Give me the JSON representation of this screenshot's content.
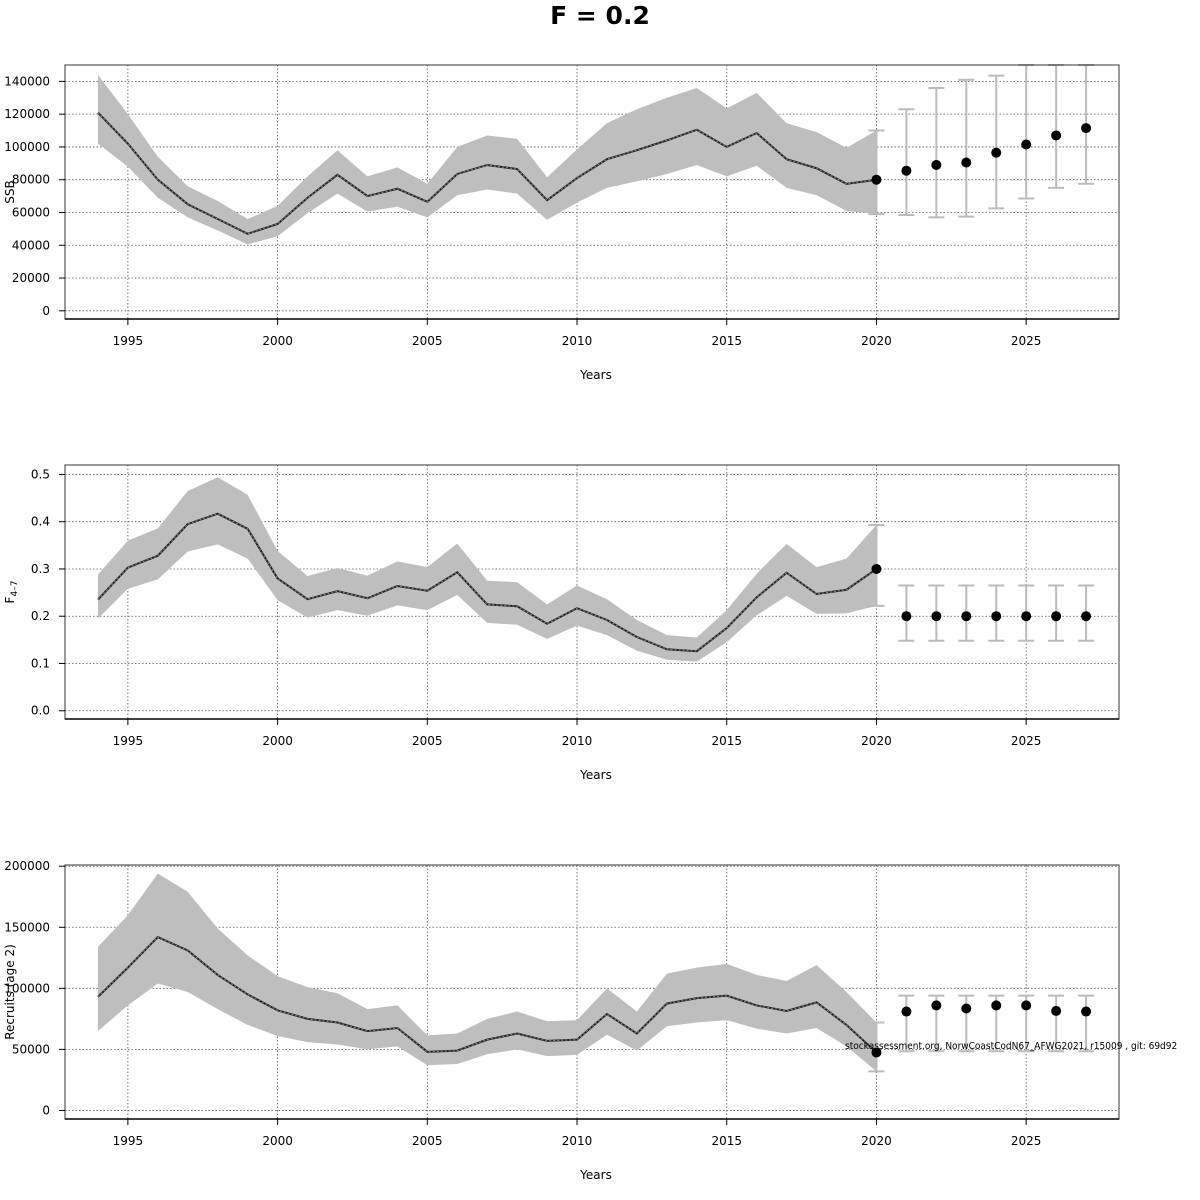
{
  "title": "F = 0.2",
  "footnote": "stockassessment.org, NorwCoastCodN67_AFWG2021, r15009 , git: 69d92",
  "colors": {
    "band": "#bebebe",
    "line": "#222222",
    "errorbar": "#bbbbbb",
    "point": "#000000",
    "grid": "#555555"
  },
  "chart_data": [
    {
      "type": "line",
      "ylabel": "SSB",
      "xlabel": "Years",
      "xlim": [
        1992.9,
        2028.1
      ],
      "ylim": [
        -5000,
        150000
      ],
      "xticks": [
        1995,
        2000,
        2005,
        2010,
        2015,
        2020,
        2025
      ],
      "yticks": [
        0,
        20000,
        40000,
        60000,
        80000,
        100000,
        120000,
        140000
      ],
      "grid": true,
      "history": {
        "years": [
          1994,
          1995,
          1996,
          1997,
          1998,
          1999,
          2000,
          2001,
          2002,
          2003,
          2004,
          2005,
          2006,
          2007,
          2008,
          2009,
          2010,
          2011,
          2012,
          2013,
          2014,
          2015,
          2016,
          2017,
          2018,
          2019,
          2020
        ],
        "estimate": [
          121000,
          102000,
          80000,
          65000,
          56000,
          47000,
          53000,
          69000,
          83000,
          70000,
          74500,
          66500,
          83500,
          89000,
          86500,
          67500,
          81000,
          92500,
          98000,
          104000,
          110500,
          100000,
          108500,
          92500,
          87000,
          77500,
          80000
        ],
        "lower": [
          102000,
          88000,
          69000,
          57000,
          49000,
          40500,
          45500,
          59500,
          71500,
          60500,
          63500,
          57000,
          70500,
          74000,
          71500,
          55500,
          66000,
          75000,
          79000,
          83500,
          89000,
          82000,
          88500,
          75000,
          70500,
          61000,
          59000
        ],
        "upper": [
          144000,
          120000,
          94000,
          76000,
          67000,
          56000,
          64000,
          82000,
          98000,
          82000,
          87500,
          77500,
          100000,
          107000,
          105000,
          81500,
          98500,
          114500,
          123000,
          130000,
          136000,
          123500,
          133000,
          114500,
          109000,
          99500,
          110000
        ]
      },
      "forecast": {
        "years": [
          2021,
          2022,
          2023,
          2024,
          2025,
          2026,
          2027
        ],
        "median": [
          85500,
          89000,
          90500,
          96500,
          101500,
          107000,
          111500
        ],
        "low": [
          58500,
          57000,
          57500,
          62500,
          68500,
          75000,
          77500
        ],
        "high": [
          123000,
          136000,
          141000,
          143500,
          150000,
          150000,
          150000
        ]
      }
    },
    {
      "type": "line",
      "ylabel": "F4–7",
      "xlabel": "Years",
      "xlim": [
        1992.9,
        2028.1
      ],
      "ylim": [
        -0.0175,
        0.52
      ],
      "xticks": [
        1995,
        2000,
        2005,
        2010,
        2015,
        2020,
        2025
      ],
      "yticks": [
        0.0,
        0.1,
        0.2,
        0.3,
        0.4,
        0.5
      ],
      "ytick_labels": [
        "0.0",
        "0.1",
        "0.2",
        "0.3",
        "0.4",
        "0.5"
      ],
      "grid": true,
      "history": {
        "years": [
          1994,
          1995,
          1996,
          1997,
          1998,
          1999,
          2000,
          2001,
          2002,
          2003,
          2004,
          2005,
          2006,
          2007,
          2008,
          2009,
          2010,
          2011,
          2012,
          2013,
          2014,
          2015,
          2016,
          2017,
          2018,
          2019,
          2020
        ],
        "estimate": [
          0.235,
          0.303,
          0.328,
          0.395,
          0.417,
          0.385,
          0.28,
          0.236,
          0.253,
          0.238,
          0.264,
          0.254,
          0.293,
          0.225,
          0.221,
          0.184,
          0.217,
          0.192,
          0.156,
          0.13,
          0.126,
          0.175,
          0.24,
          0.292,
          0.247,
          0.256,
          0.3
        ],
        "lower": [
          0.195,
          0.258,
          0.278,
          0.337,
          0.352,
          0.322,
          0.234,
          0.197,
          0.213,
          0.201,
          0.223,
          0.213,
          0.245,
          0.186,
          0.182,
          0.152,
          0.18,
          0.16,
          0.127,
          0.108,
          0.104,
          0.145,
          0.202,
          0.243,
          0.205,
          0.206,
          0.222
        ],
        "upper": [
          0.288,
          0.36,
          0.386,
          0.465,
          0.494,
          0.457,
          0.338,
          0.285,
          0.302,
          0.286,
          0.316,
          0.304,
          0.354,
          0.275,
          0.272,
          0.225,
          0.265,
          0.236,
          0.192,
          0.16,
          0.155,
          0.213,
          0.29,
          0.353,
          0.304,
          0.322,
          0.393
        ]
      },
      "forecast": {
        "years": [
          2021,
          2022,
          2023,
          2024,
          2025,
          2026,
          2027
        ],
        "median": [
          0.2,
          0.2,
          0.2,
          0.2,
          0.2,
          0.2,
          0.2
        ],
        "low": [
          0.148,
          0.148,
          0.148,
          0.148,
          0.148,
          0.148,
          0.148
        ],
        "high": [
          0.265,
          0.265,
          0.265,
          0.265,
          0.265,
          0.265,
          0.265
        ]
      }
    },
    {
      "type": "line",
      "ylabel": "Recruits (age 2)",
      "xlabel": "Years",
      "xlim": [
        1992.9,
        2028.1
      ],
      "ylim": [
        -7000,
        201000
      ],
      "xticks": [
        1995,
        2000,
        2005,
        2010,
        2015,
        2020,
        2025
      ],
      "yticks": [
        0,
        50000,
        100000,
        150000,
        200000
      ],
      "grid": true,
      "history": {
        "years": [
          1994,
          1995,
          1996,
          1997,
          1998,
          1999,
          2000,
          2001,
          2002,
          2003,
          2004,
          2005,
          2006,
          2007,
          2008,
          2009,
          2010,
          2011,
          2012,
          2013,
          2014,
          2015,
          2016,
          2017,
          2018,
          2019,
          2020
        ],
        "estimate": [
          93000,
          117000,
          142000,
          131000,
          111000,
          95000,
          82000,
          75000,
          72000,
          65000,
          67500,
          48000,
          49000,
          58000,
          63000,
          57000,
          58000,
          79000,
          63000,
          87500,
          92000,
          94000,
          86000,
          81500,
          88500,
          70000,
          47500
        ],
        "lower": [
          65000,
          86000,
          104000,
          97000,
          83000,
          70000,
          61000,
          56000,
          54000,
          50000,
          52500,
          37000,
          38000,
          46000,
          50000,
          44500,
          45500,
          62000,
          49000,
          69000,
          72000,
          74000,
          67000,
          63000,
          67500,
          52500,
          32000
        ],
        "upper": [
          134000,
          160000,
          194000,
          179000,
          149000,
          127000,
          110000,
          101000,
          96000,
          83000,
          86000,
          61500,
          63000,
          75000,
          81000,
          73000,
          74000,
          100000,
          81000,
          112000,
          117000,
          120000,
          111000,
          106000,
          119000,
          97000,
          72000
        ]
      },
      "forecast": {
        "years": [
          2021,
          2022,
          2023,
          2024,
          2025,
          2026,
          2027
        ],
        "median": [
          81000,
          86000,
          83500,
          86000,
          86000,
          81500,
          81000
        ],
        "low": [
          48500,
          48500,
          48500,
          48500,
          48500,
          48500,
          48500
        ],
        "high": [
          94000,
          94000,
          94000,
          94000,
          94000,
          94000,
          94000
        ]
      }
    }
  ]
}
